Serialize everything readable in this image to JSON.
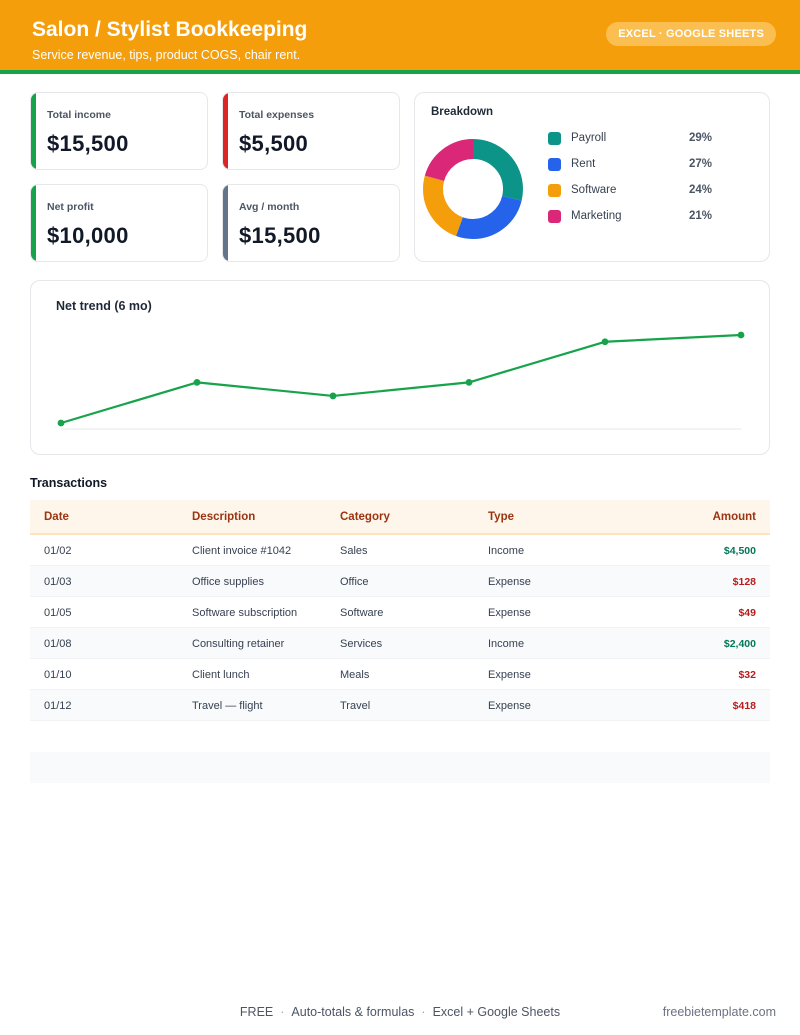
{
  "header": {
    "title": "Salon / Stylist Bookkeeping",
    "subtitle": "Service revenue, tips, product COGS, chair rent.",
    "badge": "EXCEL · GOOGLE SHEETS",
    "accent_color": "#f59e0b",
    "underline_color": "#16a34a"
  },
  "kpis": [
    {
      "label": "Total income",
      "value": "$15,500",
      "color": "#16a34a"
    },
    {
      "label": "Total expenses",
      "value": "$5,500",
      "color": "#dc2626"
    },
    {
      "label": "Net profit",
      "value": "$10,000",
      "color": "#16a34a"
    },
    {
      "label": "Avg / month",
      "value": "$15,500",
      "color": "#64748b"
    }
  ],
  "breakdown": {
    "title": "Breakdown",
    "items": [
      {
        "name": "Payroll",
        "pct": "29%",
        "value": 29,
        "color": "#0d9488"
      },
      {
        "name": "Rent",
        "pct": "27%",
        "value": 27,
        "color": "#2563eb"
      },
      {
        "name": "Software",
        "pct": "24%",
        "value": 24,
        "color": "#f59e0b"
      },
      {
        "name": "Marketing",
        "pct": "21%",
        "value": 21,
        "color": "#db2777"
      }
    ]
  },
  "chart_data": {
    "type": "line",
    "title": "Net trend (6 mo)",
    "series": [
      {
        "values": [
          0.0,
          0.6,
          0.4,
          0.6,
          1.2,
          1.3
        ],
        "color": "#16a34a"
      }
    ],
    "grid": false
  },
  "transactions": {
    "title": "Transactions",
    "columns": [
      "Date",
      "Description",
      "Category",
      "Type",
      "Amount"
    ],
    "rows": [
      {
        "date": "01/02",
        "desc": "Client invoice #1042",
        "cat": "Sales",
        "type": "Income",
        "amount": "$4,500"
      },
      {
        "date": "01/03",
        "desc": "Office supplies",
        "cat": "Office",
        "type": "Expense",
        "amount": "$128"
      },
      {
        "date": "01/05",
        "desc": "Software subscription",
        "cat": "Software",
        "type": "Expense",
        "amount": "$49"
      },
      {
        "date": "01/08",
        "desc": "Consulting retainer",
        "cat": "Services",
        "type": "Income",
        "amount": "$2,400"
      },
      {
        "date": "01/10",
        "desc": "Client lunch",
        "cat": "Meals",
        "type": "Expense",
        "amount": "$32"
      },
      {
        "date": "01/12",
        "desc": "Travel — flight",
        "cat": "Travel",
        "type": "Expense",
        "amount": "$418"
      }
    ],
    "income_color": "#047857",
    "expense_color": "#b91c1c"
  },
  "footer": {
    "items": [
      "FREE",
      "Auto-totals & formulas",
      "Excel + Google Sheets"
    ],
    "separator": "·",
    "site": "freebietemplate.com"
  }
}
